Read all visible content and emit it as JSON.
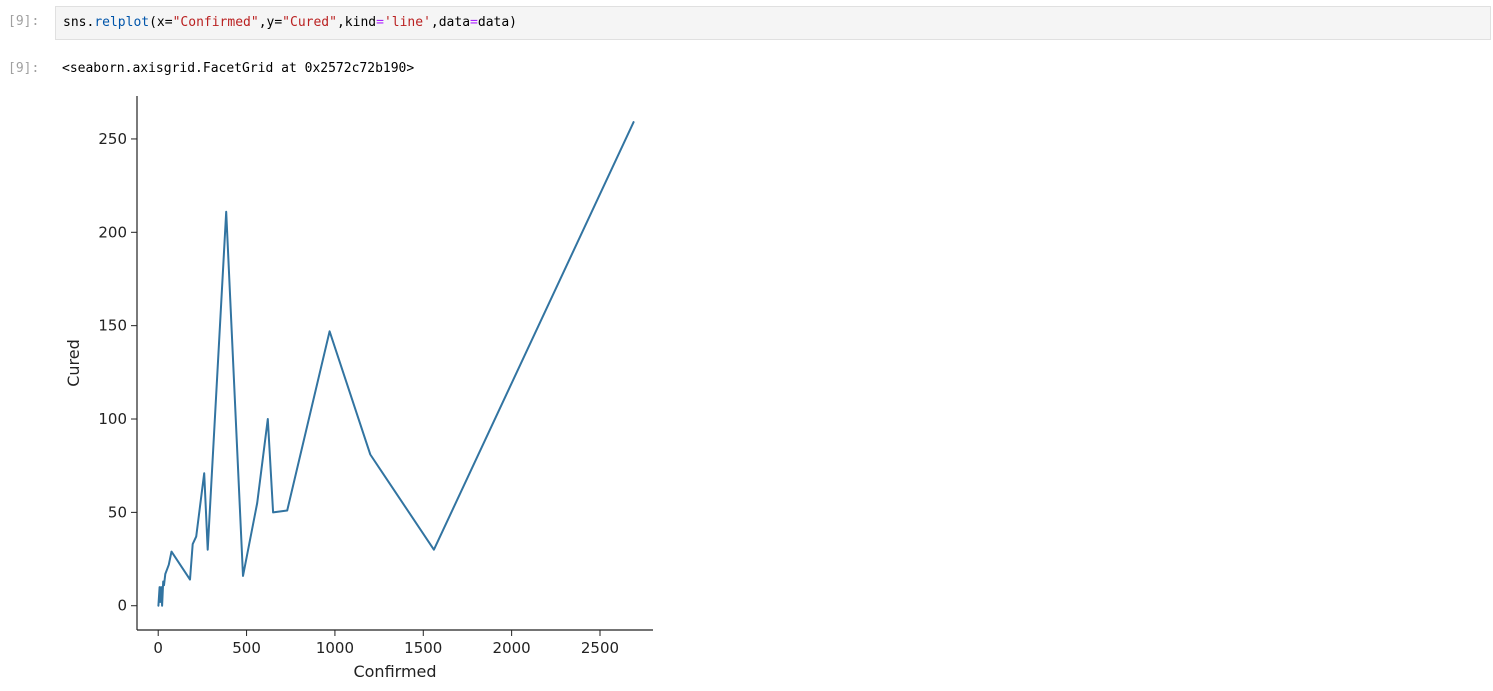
{
  "cell": {
    "input_prompt": "[9]:",
    "output_prompt": "[9]:",
    "code": {
      "obj": "sns.",
      "fn": "relplot",
      "p1": "(x=",
      "s1": "\"Confirmed\"",
      "p2": ",y=",
      "s2": "\"Cured\"",
      "p3": ",kind",
      "eq1": "=",
      "s3": "'line'",
      "p4": ",data",
      "eq2": "=",
      "p5": "data)"
    },
    "output_text": "<seaborn.axisgrid.FacetGrid at 0x2572c72b190>"
  },
  "chart_data": {
    "type": "line",
    "title": "",
    "xlabel": "Confirmed",
    "ylabel": "Cured",
    "xlim": [
      -120,
      2800
    ],
    "ylim": [
      -13,
      273
    ],
    "xticks": [
      0,
      500,
      1000,
      1500,
      2000,
      2500
    ],
    "yticks": [
      0,
      50,
      100,
      150,
      200,
      250
    ],
    "grid": false,
    "line_color": "#3274a1",
    "series": [
      {
        "x": [
          1,
          8,
          12,
          17,
          22,
          28,
          33,
          40,
          48,
          60,
          75,
          180,
          195,
          215,
          260,
          280,
          385,
          480,
          560,
          620,
          650,
          730,
          970,
          1200,
          1560,
          2690
        ],
        "y": [
          0,
          10,
          2,
          10,
          0,
          13,
          11,
          17,
          19,
          22,
          29,
          14,
          33,
          37,
          71,
          30,
          211,
          16,
          55,
          100,
          50,
          51,
          147,
          81,
          30,
          259
        ]
      }
    ]
  }
}
